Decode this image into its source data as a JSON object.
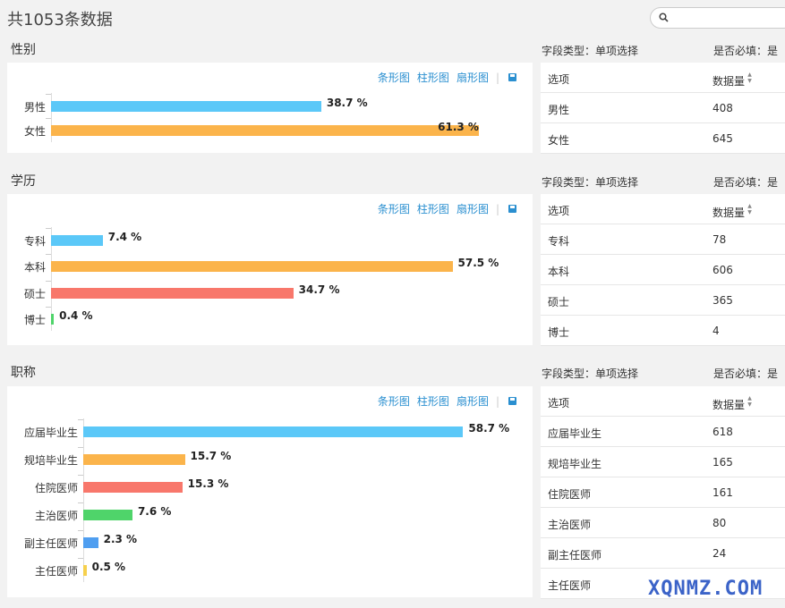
{
  "header": {
    "total_text": "共1053条数据",
    "search_placeholder": ""
  },
  "toolbar": {
    "bar_label": "条形图",
    "column_label": "柱形图",
    "pie_label": "扇形图",
    "separator": "|"
  },
  "colors": {
    "blue": "#5bc8f8",
    "orange": "#fbb44b",
    "red": "#f8776b",
    "green": "#4fd46a",
    "darkblue": "#4f9ef0",
    "yellow": "#f6d04d"
  },
  "sections": [
    {
      "title": "性别",
      "field_type": "字段类型：单项选择",
      "required": "是否必填：是",
      "table_header": {
        "option": "选项",
        "count": "数据量"
      },
      "rows": [
        {
          "label": "男性",
          "count": "408",
          "pct": "38.7 %"
        },
        {
          "label": "女性",
          "count": "645",
          "pct": "61.3 %"
        }
      ]
    },
    {
      "title": "学历",
      "field_type": "字段类型：单项选择",
      "required": "是否必填：是",
      "table_header": {
        "option": "选项",
        "count": "数据量"
      },
      "rows": [
        {
          "label": "专科",
          "count": "78",
          "pct": "7.4 %"
        },
        {
          "label": "本科",
          "count": "606",
          "pct": "57.5 %"
        },
        {
          "label": "硕士",
          "count": "365",
          "pct": "34.7 %"
        },
        {
          "label": "博士",
          "count": "4",
          "pct": "0.4 %"
        }
      ]
    },
    {
      "title": "职称",
      "field_type": "字段类型：单项选择",
      "required": "是否必填：是",
      "table_header": {
        "option": "选项",
        "count": "数据量"
      },
      "rows": [
        {
          "label": "应届毕业生",
          "count": "618",
          "pct": "58.7 %"
        },
        {
          "label": "规培毕业生",
          "count": "165",
          "pct": "15.7 %"
        },
        {
          "label": "住院医师",
          "count": "161",
          "pct": "15.3 %"
        },
        {
          "label": "主治医师",
          "count": "80",
          "pct": "7.6 %"
        },
        {
          "label": "副主任医师",
          "count": "24",
          "pct": "2.3 %"
        },
        {
          "label": "主任医师",
          "count": "",
          "pct": "0.5 %"
        }
      ]
    }
  ],
  "chart_data": [
    {
      "type": "bar",
      "categories": [
        "男性",
        "女性"
      ],
      "values": [
        38.7,
        61.3
      ]
    },
    {
      "type": "bar",
      "categories": [
        "专科",
        "本科",
        "硕士",
        "博士"
      ],
      "values": [
        7.4,
        57.5,
        34.7,
        0.4
      ]
    },
    {
      "type": "bar",
      "categories": [
        "应届毕业生",
        "规培毕业生",
        "住院医师",
        "主治医师",
        "副主任医师",
        "主任医师"
      ],
      "values": [
        58.7,
        15.7,
        15.3,
        7.6,
        2.3,
        0.5
      ]
    }
  ],
  "watermark": "XQNMZ.COM"
}
